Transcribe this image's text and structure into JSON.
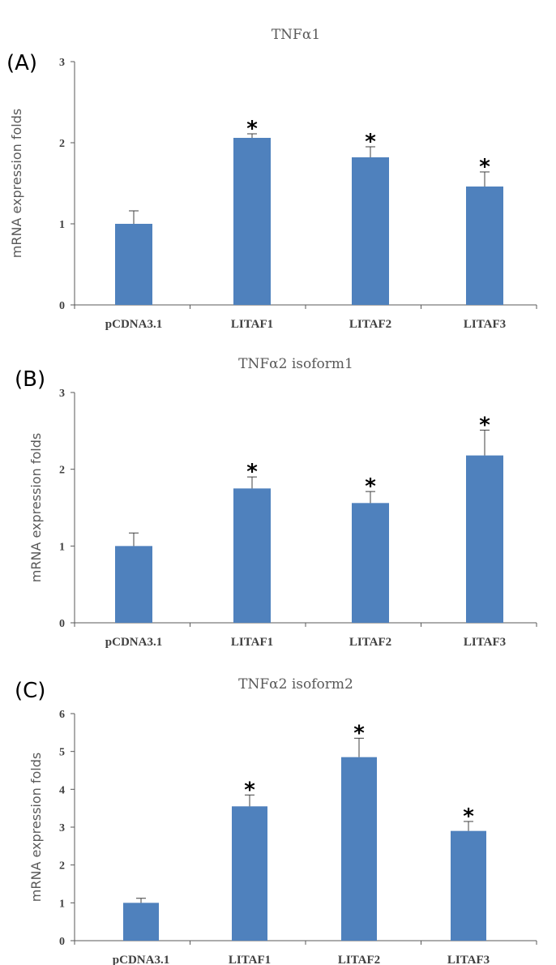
{
  "chart_data": [
    {
      "panel": "(A)",
      "type": "bar",
      "title": "TNFα1",
      "ylabel": "mRNA expression folds",
      "xlabel": "",
      "categories": [
        "pCDNA3.1",
        "LITAF1",
        "LITAF2",
        "LITAF3"
      ],
      "values": [
        1.0,
        2.06,
        1.82,
        1.46
      ],
      "errors": [
        0.16,
        0.05,
        0.13,
        0.18
      ],
      "significance": [
        "",
        "*",
        "*",
        "*"
      ],
      "ylim": [
        0,
        3
      ],
      "yticks": [
        "0",
        "1",
        "2",
        "3"
      ],
      "bar_color": "#4f81bd",
      "grid": false
    },
    {
      "panel": "(B)",
      "type": "bar",
      "title": "TNFα2  isoform1",
      "ylabel": "mRNA expression folds",
      "xlabel": "",
      "categories": [
        "pCDNA3.1",
        "LITAF1",
        "LITAF2",
        "LITAF3"
      ],
      "values": [
        1.0,
        1.75,
        1.56,
        2.18
      ],
      "errors": [
        0.17,
        0.15,
        0.15,
        0.33
      ],
      "significance": [
        "",
        "*",
        "*",
        "*"
      ],
      "ylim": [
        0,
        3
      ],
      "yticks": [
        "0",
        "1",
        "2",
        "3"
      ],
      "bar_color": "#4f81bd",
      "grid": false
    },
    {
      "panel": "(C)",
      "type": "bar",
      "title": "TNFα2  isoform2",
      "ylabel": "mRNA expression folds",
      "xlabel": "",
      "categories": [
        "pCDNA3.1",
        "LITAF1",
        "LITAF2",
        "LITAF3"
      ],
      "values": [
        1.0,
        3.55,
        4.85,
        2.9
      ],
      "errors": [
        0.12,
        0.3,
        0.5,
        0.25
      ],
      "significance": [
        "",
        "*",
        "*",
        "*"
      ],
      "ylim": [
        0,
        6
      ],
      "yticks": [
        "0",
        "1",
        "2",
        "3",
        "4",
        "5",
        "6"
      ],
      "bar_color": "#4f81bd",
      "grid": false
    }
  ]
}
